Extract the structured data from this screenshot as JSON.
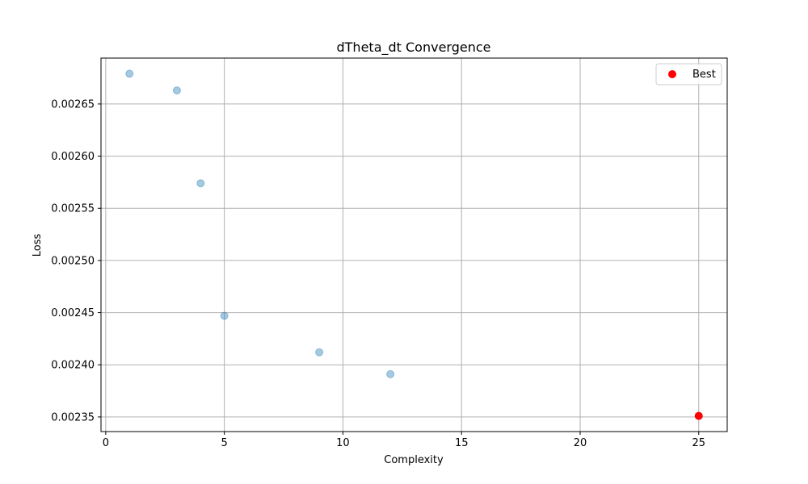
{
  "chart_data": {
    "type": "scatter",
    "title": "dTheta_dt Convergence",
    "xlabel": "Complexity",
    "ylabel": "Loss",
    "xlim": [
      -0.2,
      26.2
    ],
    "ylim": [
      0.002336,
      0.002694
    ],
    "xticks": [
      0,
      5,
      10,
      15,
      20,
      25
    ],
    "xtick_labels": [
      "0",
      "5",
      "10",
      "15",
      "20",
      "25"
    ],
    "yticks": [
      0.00235,
      0.0024,
      0.00245,
      0.0025,
      0.00255,
      0.0026,
      0.00265
    ],
    "ytick_labels": [
      "0.00235",
      "0.00240",
      "0.00245",
      "0.00250",
      "0.00255",
      "0.00260",
      "0.00265"
    ],
    "grid": true,
    "legend_position": "top-right",
    "series": [
      {
        "name": "",
        "color": "#1f77b4",
        "alpha": 0.4,
        "points": [
          {
            "x": 1,
            "y": 0.002679
          },
          {
            "x": 3,
            "y": 0.002663
          },
          {
            "x": 4,
            "y": 0.002574
          },
          {
            "x": 5,
            "y": 0.002447
          },
          {
            "x": 9,
            "y": 0.002412
          },
          {
            "x": 12,
            "y": 0.002391
          },
          {
            "x": 25,
            "y": 0.002351
          }
        ]
      },
      {
        "name": "Best",
        "color": "#ff0000",
        "alpha": 1,
        "points": [
          {
            "x": 25,
            "y": 0.002351
          }
        ]
      }
    ]
  }
}
